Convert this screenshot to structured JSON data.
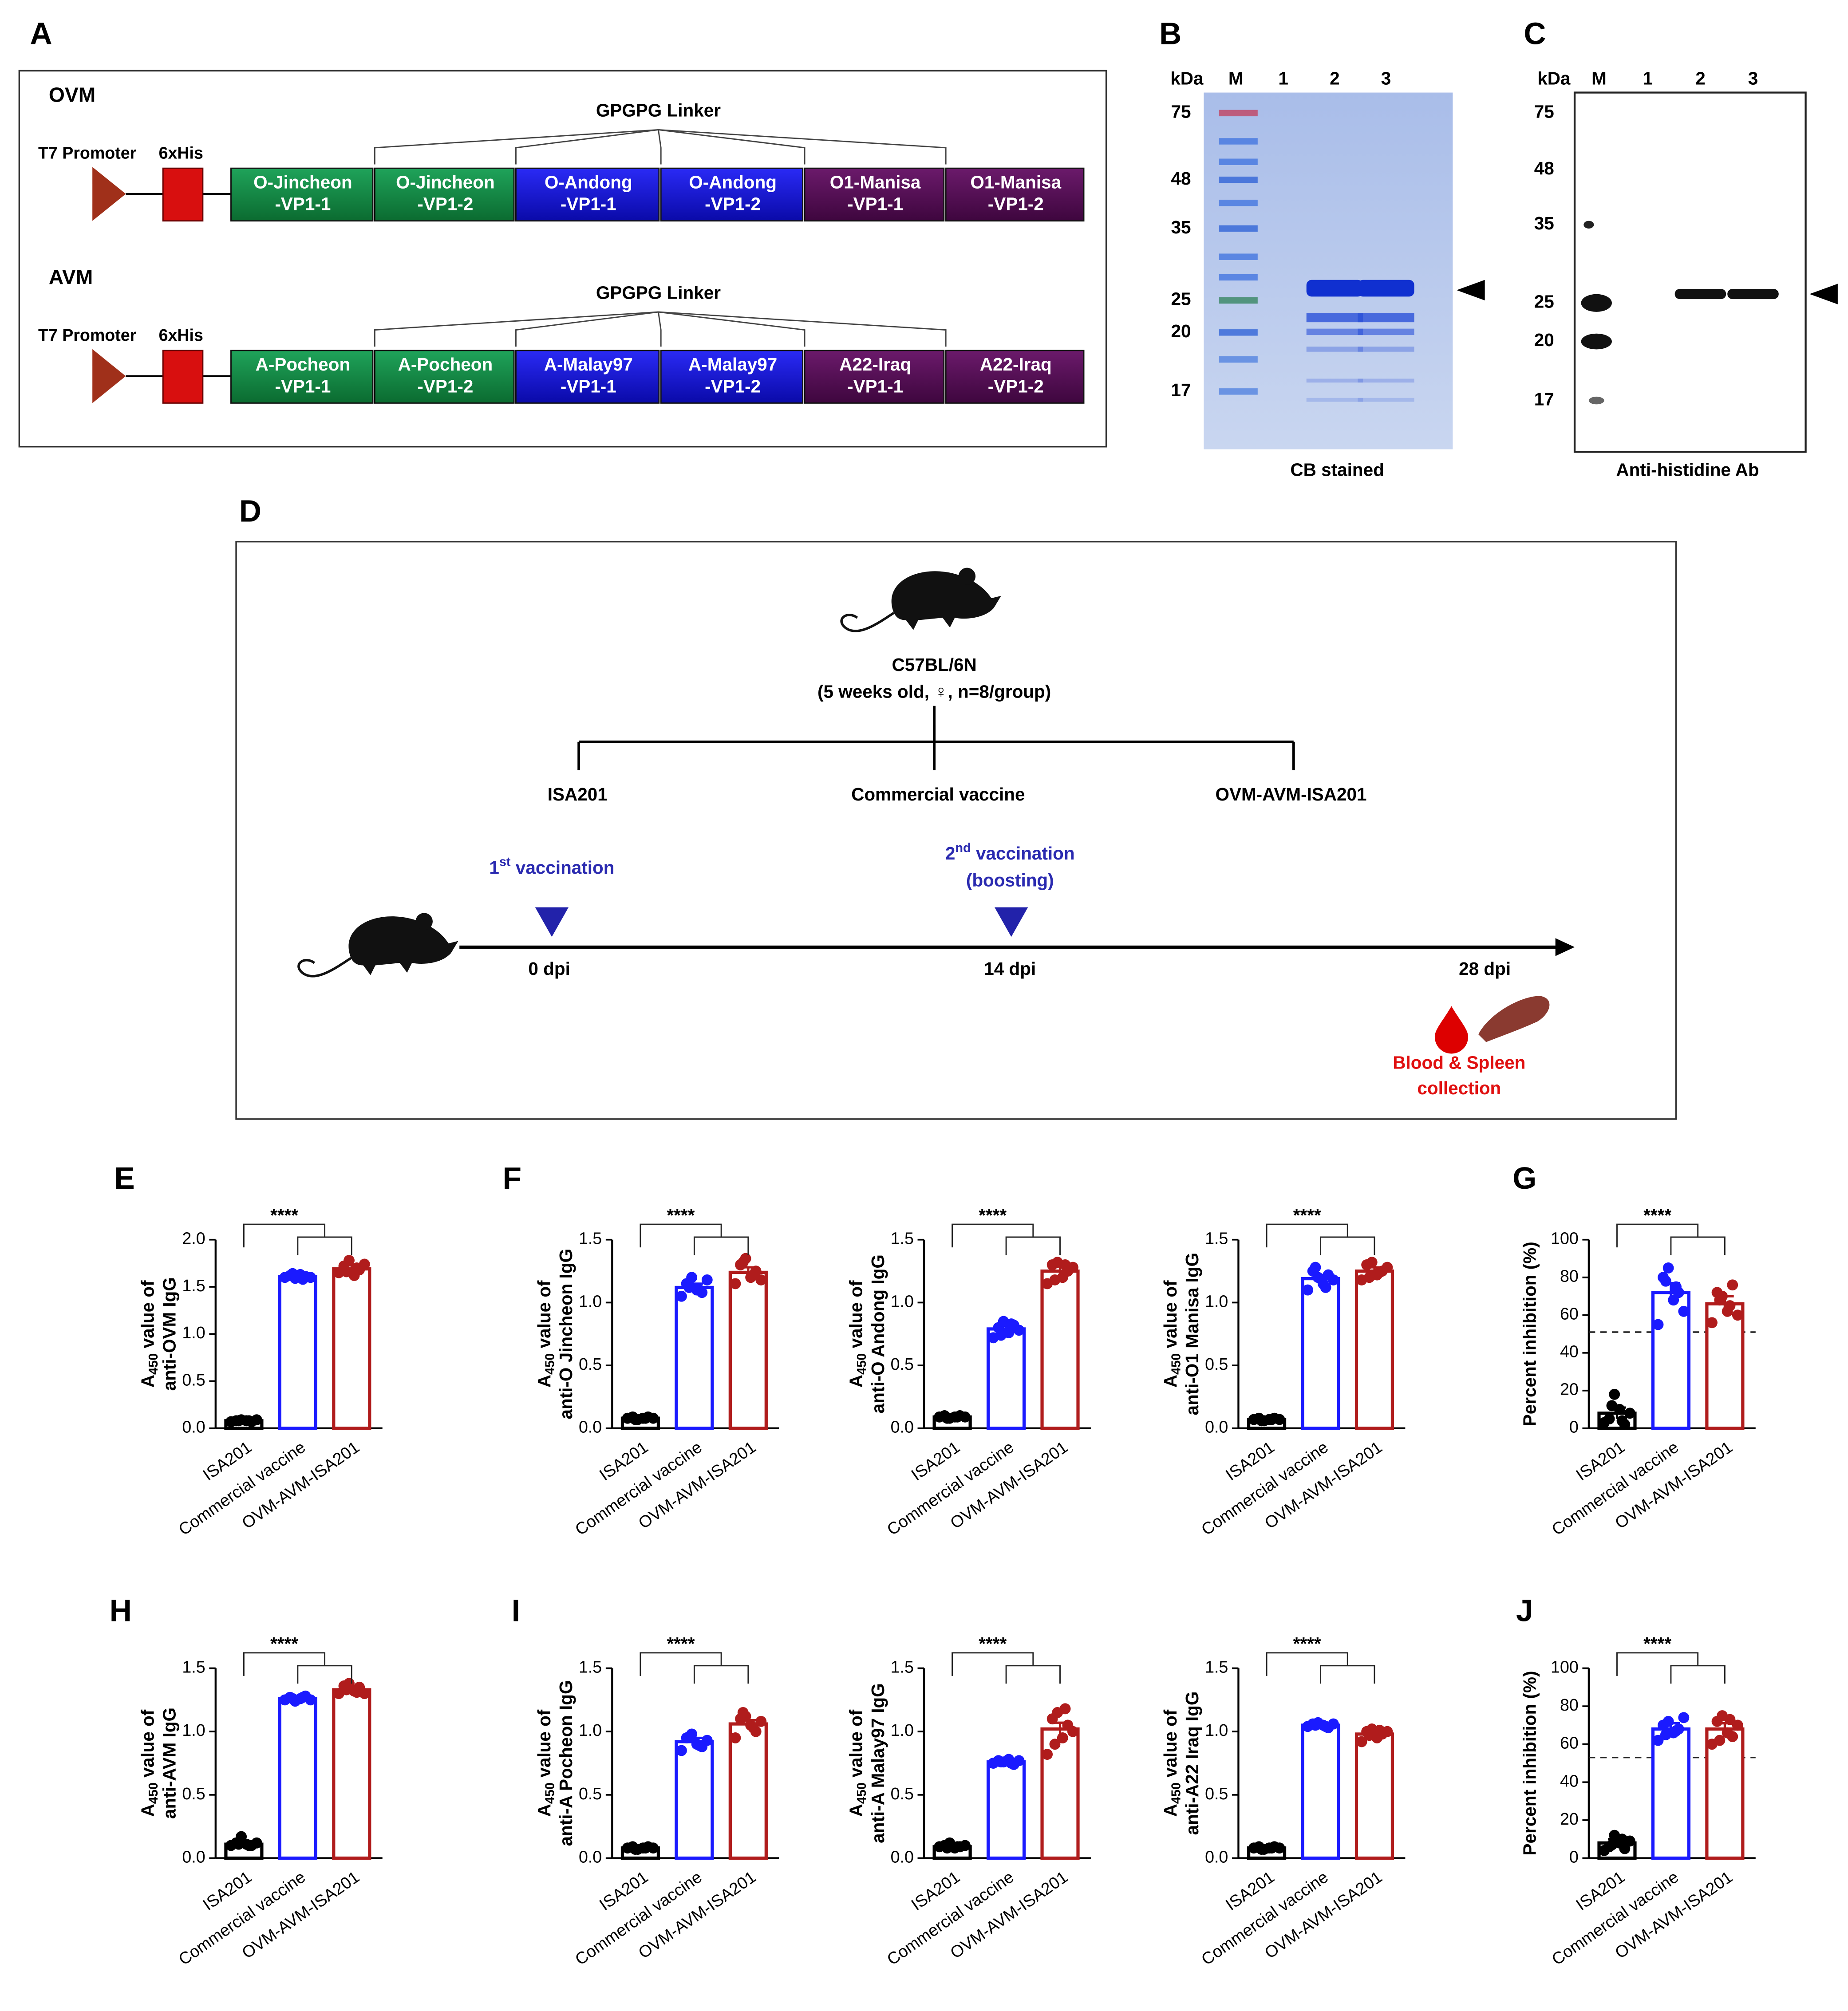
{
  "panel_labels": [
    "A",
    "B",
    "C",
    "D",
    "E",
    "F",
    "G",
    "H",
    "I",
    "J"
  ],
  "construct": {
    "linker": "GPGPG Linker",
    "rows": [
      {
        "name": "OVM",
        "promoter": "T7 Promoter",
        "tag": "6xHis",
        "segments": [
          [
            "O-Jincheon",
            "-VP1-1"
          ],
          [
            "O-Jincheon",
            "-VP1-2"
          ],
          [
            "O-Andong",
            "-VP1-1"
          ],
          [
            "O-Andong",
            "-VP1-2"
          ],
          [
            "O1-Manisa",
            "-VP1-1"
          ],
          [
            "O1-Manisa",
            "-VP1-2"
          ]
        ]
      },
      {
        "name": "AVM",
        "promoter": "T7 Promoter",
        "tag": "6xHis",
        "segments": [
          [
            "A-Pocheon",
            "-VP1-1"
          ],
          [
            "A-Pocheon",
            "-VP1-2"
          ],
          [
            "A-Malay97",
            "-VP1-1"
          ],
          [
            "A-Malay97",
            "-VP1-2"
          ],
          [
            "A22-Iraq",
            "-VP1-1"
          ],
          [
            "A22-Iraq",
            "-VP1-2"
          ]
        ]
      }
    ]
  },
  "gels": [
    {
      "unit": "kDa",
      "lanes": [
        "M",
        "1",
        "2",
        "3"
      ],
      "markers": [
        75,
        48,
        35,
        25,
        20,
        17
      ],
      "caption": "CB stained"
    },
    {
      "unit": "kDa",
      "lanes": [
        "M",
        "1",
        "2",
        "3"
      ],
      "markers": [
        75,
        48,
        35,
        25,
        20,
        17
      ],
      "caption": "Anti-histidine Ab"
    }
  ],
  "schedule": {
    "strain": "C57BL/6N",
    "strain_note": "(5 weeks old, ♀, n=8/group)",
    "groups": [
      "ISA201",
      "Commercial vaccine",
      "OVM-AVM-ISA201"
    ],
    "first": {
      "base": "1",
      "sup": "st",
      "rest": " vaccination"
    },
    "second": {
      "base": "2",
      "sup": "nd",
      "rest": " vaccination",
      "line2": "(boosting)"
    },
    "timepoints": [
      "0 dpi",
      "14 dpi",
      "28 dpi"
    ],
    "collection": [
      "Blood & Spleen",
      "collection"
    ]
  },
  "chart_data": [
    {
      "type": "bar",
      "ylabel": [
        {
          "text": "A",
          "sub": "450",
          "tail": " value of"
        },
        {
          "text": "anti-OVM IgG"
        }
      ],
      "categories": [
        "ISA201",
        "Commercial vaccine",
        "OVM-AVM-ISA201"
      ],
      "colors": [
        "#000000",
        "#1a1aff",
        "#b01c1c"
      ],
      "values": [
        0.08,
        1.61,
        1.69
      ],
      "errors": [
        0.01,
        0.02,
        0.04
      ],
      "points": [
        [
          0.07,
          0.08,
          0.09,
          0.08,
          0.07,
          0.09,
          0.08,
          0.08
        ],
        [
          1.6,
          1.62,
          1.59,
          1.63,
          1.61,
          1.6,
          1.64,
          1.58
        ],
        [
          1.65,
          1.72,
          1.78,
          1.62,
          1.68,
          1.74,
          1.66,
          1.7
        ]
      ],
      "ylim": [
        0,
        2
      ],
      "yticks": [
        {
          "value": 0,
          "label": "0.0"
        },
        0.5,
        {
          "value": 1,
          "label": "1.0"
        },
        1.5,
        {
          "value": 2,
          "label": "2.0"
        }
      ],
      "significance": "****"
    },
    {
      "type": "bar",
      "ylabel": [
        {
          "text": "A",
          "sub": "450",
          "tail": " value of"
        },
        {
          "text": "anti-O Jincheon IgG"
        }
      ],
      "categories": [
        "ISA201",
        "Commercial vaccine",
        "OVM-AVM-ISA201"
      ],
      "colors": [
        "#000000",
        "#1a1aff",
        "#b01c1c"
      ],
      "values": [
        0.08,
        1.12,
        1.24
      ],
      "errors": [
        0.01,
        0.03,
        0.04
      ],
      "points": [
        [
          0.08,
          0.09,
          0.07,
          0.08,
          0.09,
          0.08,
          0.07,
          0.08
        ],
        [
          1.05,
          1.15,
          1.2,
          1.1,
          1.08,
          1.18,
          1.12,
          1.1
        ],
        [
          1.15,
          1.3,
          1.35,
          1.2,
          1.25,
          1.18,
          1.32,
          1.22
        ]
      ],
      "ylim": [
        0,
        1.5
      ],
      "yticks": [
        {
          "value": 0,
          "label": "0.0"
        },
        0.5,
        {
          "value": 1,
          "label": "1.0"
        },
        1.5
      ],
      "significance": "****"
    },
    {
      "type": "bar",
      "ylabel": [
        {
          "text": "A",
          "sub": "450",
          "tail": " value of"
        },
        {
          "text": "anti-O Andong IgG"
        }
      ],
      "categories": [
        "ISA201",
        "Commercial vaccine",
        "OVM-AVM-ISA201"
      ],
      "colors": [
        "#000000",
        "#1a1aff",
        "#b01c1c"
      ],
      "values": [
        0.09,
        0.79,
        1.25
      ],
      "errors": [
        0.01,
        0.03,
        0.04
      ],
      "points": [
        [
          0.09,
          0.1,
          0.08,
          0.09,
          0.1,
          0.09,
          0.08,
          0.09
        ],
        [
          0.72,
          0.8,
          0.85,
          0.76,
          0.82,
          0.78,
          0.74,
          0.83
        ],
        [
          1.15,
          1.3,
          1.32,
          1.2,
          1.25,
          1.28,
          1.18,
          1.3
        ]
      ],
      "ylim": [
        0,
        1.5
      ],
      "yticks": [
        {
          "value": 0,
          "label": "0.0"
        },
        0.5,
        {
          "value": 1,
          "label": "1.0"
        },
        1.5
      ],
      "significance": "****"
    },
    {
      "type": "bar",
      "ylabel": [
        {
          "text": "A",
          "sub": "450",
          "tail": " value of"
        },
        {
          "text": "anti-O1 Manisa IgG"
        }
      ],
      "categories": [
        "ISA201",
        "Commercial vaccine",
        "OVM-AVM-ISA201"
      ],
      "colors": [
        "#000000",
        "#1a1aff",
        "#b01c1c"
      ],
      "values": [
        0.07,
        1.19,
        1.25
      ],
      "errors": [
        0.01,
        0.03,
        0.03
      ],
      "points": [
        [
          0.07,
          0.08,
          0.06,
          0.07,
          0.08,
          0.07,
          0.06,
          0.07
        ],
        [
          1.1,
          1.25,
          1.2,
          1.15,
          1.22,
          1.18,
          1.28,
          1.12
        ],
        [
          1.18,
          1.3,
          1.32,
          1.22,
          1.25,
          1.28,
          1.2,
          1.24
        ]
      ],
      "ylim": [
        0,
        1.5
      ],
      "yticks": [
        {
          "value": 0,
          "label": "0.0"
        },
        0.5,
        {
          "value": 1,
          "label": "1.0"
        },
        1.5
      ],
      "significance": "****"
    },
    {
      "type": "bar",
      "ylabel": [
        {
          "text": "Percent inhibition (%)"
        }
      ],
      "categories": [
        "ISA201",
        "Commercial vaccine",
        "OVM-AVM-ISA201"
      ],
      "colors": [
        "#000000",
        "#1a1aff",
        "#b01c1c"
      ],
      "values": [
        8,
        72,
        66
      ],
      "errors": [
        3,
        5,
        4
      ],
      "points": [
        [
          3,
          5,
          18,
          10,
          2,
          8,
          12,
          4
        ],
        [
          55,
          80,
          85,
          68,
          72,
          62,
          78,
          75
        ],
        [
          56,
          72,
          70,
          62,
          76,
          60,
          68,
          65
        ]
      ],
      "ylim": [
        0,
        100
      ],
      "yticks": [
        0,
        20,
        40,
        60,
        80,
        100
      ],
      "threshold": 51,
      "significance": "****"
    },
    {
      "type": "bar",
      "ylabel": [
        {
          "text": "A",
          "sub": "450",
          "tail": " value of"
        },
        {
          "text": "anti-AVM IgG"
        }
      ],
      "categories": [
        "ISA201",
        "Commercial vaccine",
        "OVM-AVM-ISA201"
      ],
      "colors": [
        "#000000",
        "#1a1aff",
        "#b01c1c"
      ],
      "values": [
        0.11,
        1.26,
        1.33
      ],
      "errors": [
        0.01,
        0.01,
        0.02
      ],
      "points": [
        [
          0.1,
          0.12,
          0.17,
          0.11,
          0.1,
          0.12,
          0.11,
          0.1
        ],
        [
          1.25,
          1.27,
          1.24,
          1.26,
          1.28,
          1.25,
          1.26,
          1.27
        ],
        [
          1.3,
          1.36,
          1.38,
          1.32,
          1.35,
          1.3,
          1.33,
          1.31
        ]
      ],
      "ylim": [
        0,
        1.5
      ],
      "yticks": [
        {
          "value": 0,
          "label": "0.0"
        },
        0.5,
        {
          "value": 1,
          "label": "1.0"
        },
        1.5
      ],
      "significance": "****"
    },
    {
      "type": "bar",
      "ylabel": [
        {
          "text": "A",
          "sub": "450",
          "tail": " value of"
        },
        {
          "text": "anti-A Pocheon IgG"
        }
      ],
      "categories": [
        "ISA201",
        "Commercial vaccine",
        "OVM-AVM-ISA201"
      ],
      "colors": [
        "#000000",
        "#1a1aff",
        "#b01c1c"
      ],
      "values": [
        0.08,
        0.92,
        1.06
      ],
      "errors": [
        0.01,
        0.03,
        0.03
      ],
      "points": [
        [
          0.08,
          0.09,
          0.07,
          0.08,
          0.09,
          0.08,
          0.07,
          0.08
        ],
        [
          0.85,
          0.95,
          0.98,
          0.9,
          0.88,
          0.93,
          0.96,
          0.89
        ],
        [
          0.95,
          1.1,
          1.12,
          1.05,
          1.0,
          1.08,
          1.15,
          1.03
        ]
      ],
      "ylim": [
        0,
        1.5
      ],
      "yticks": [
        {
          "value": 0,
          "label": "0.0"
        },
        0.5,
        {
          "value": 1,
          "label": "1.0"
        },
        1.5
      ],
      "significance": "****"
    },
    {
      "type": "bar",
      "ylabel": [
        {
          "text": "A",
          "sub": "450",
          "tail": " value of"
        },
        {
          "text": "anti-A Malay97 IgG"
        }
      ],
      "categories": [
        "ISA201",
        "Commercial vaccine",
        "OVM-AVM-ISA201"
      ],
      "colors": [
        "#000000",
        "#1a1aff",
        "#b01c1c"
      ],
      "values": [
        0.09,
        0.76,
        1.02
      ],
      "errors": [
        0.01,
        0.01,
        0.05
      ],
      "points": [
        [
          0.09,
          0.1,
          0.12,
          0.08,
          0.09,
          0.1,
          0.08,
          0.09
        ],
        [
          0.75,
          0.77,
          0.76,
          0.78,
          0.74,
          0.77,
          0.76,
          0.75
        ],
        [
          0.82,
          1.1,
          1.15,
          0.95,
          1.05,
          1.0,
          0.9,
          1.18
        ]
      ],
      "ylim": [
        0,
        1.5
      ],
      "yticks": [
        {
          "value": 0,
          "label": "0.0"
        },
        0.5,
        {
          "value": 1,
          "label": "1.0"
        },
        1.5
      ],
      "significance": "****"
    },
    {
      "type": "bar",
      "ylabel": [
        {
          "text": "A",
          "sub": "450",
          "tail": " value of"
        },
        {
          "text": "anti-A22 Iraq IgG"
        }
      ],
      "categories": [
        "ISA201",
        "Commercial vaccine",
        "OVM-AVM-ISA201"
      ],
      "colors": [
        "#000000",
        "#1a1aff",
        "#b01c1c"
      ],
      "values": [
        0.08,
        1.05,
        0.98
      ],
      "errors": [
        0.01,
        0.01,
        0.02
      ],
      "points": [
        [
          0.08,
          0.09,
          0.07,
          0.08,
          0.09,
          0.08,
          0.07,
          0.08
        ],
        [
          1.04,
          1.06,
          1.07,
          1.05,
          1.03,
          1.06,
          1.05,
          1.04
        ],
        [
          0.92,
          1.0,
          1.02,
          0.95,
          0.98,
          1.0,
          0.97,
          1.01
        ]
      ],
      "ylim": [
        0,
        1.5
      ],
      "yticks": [
        {
          "value": 0,
          "label": "0.0"
        },
        0.5,
        {
          "value": 1,
          "label": "1.0"
        },
        1.5
      ],
      "significance": "****"
    },
    {
      "type": "bar",
      "ylabel": [
        {
          "text": "Percent inhibition (%)"
        }
      ],
      "categories": [
        "ISA201",
        "Commercial vaccine",
        "OVM-AVM-ISA201"
      ],
      "colors": [
        "#000000",
        "#1a1aff",
        "#b01c1c"
      ],
      "values": [
        8,
        68,
        68
      ],
      "errors": [
        2,
        3,
        3
      ],
      "points": [
        [
          4,
          6,
          12,
          8,
          5,
          9,
          7,
          10
        ],
        [
          62,
          70,
          72,
          66,
          68,
          74,
          65,
          67
        ],
        [
          60,
          72,
          75,
          66,
          64,
          70,
          62,
          73
        ]
      ],
      "ylim": [
        0,
        100
      ],
      "yticks": [
        0,
        20,
        40,
        60,
        80,
        100
      ],
      "threshold": 53,
      "significance": "****"
    }
  ]
}
